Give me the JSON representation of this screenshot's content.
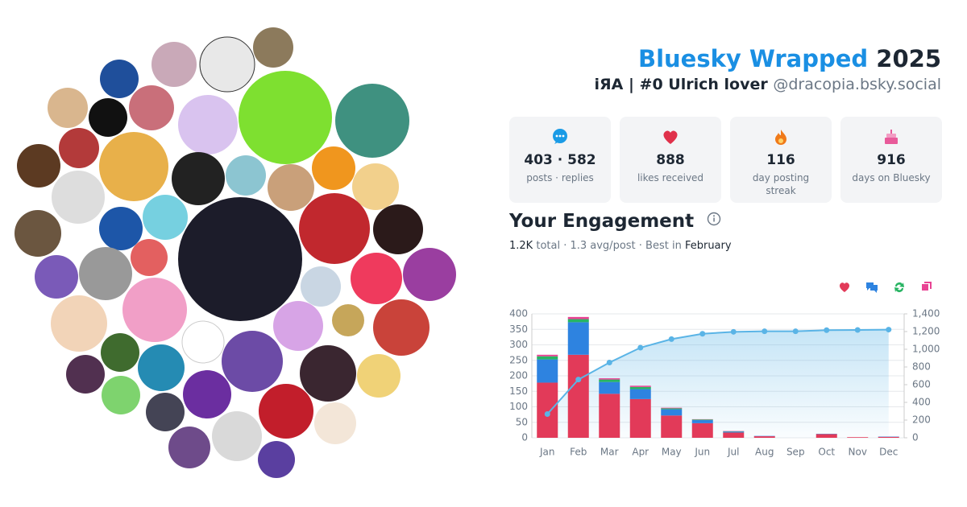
{
  "header": {
    "title": "Bluesky Wrapped",
    "year": "2025",
    "name": "iЯA | #0 Ulrich lover",
    "handle": "@dracopia.bsky.social"
  },
  "stats": [
    {
      "value": "403 · 582",
      "label": "posts · replies"
    },
    {
      "value": "888",
      "label": "likes received"
    },
    {
      "value": "116",
      "label": "day posting streak"
    },
    {
      "value": "916",
      "label": "days on Bluesky"
    }
  ],
  "engagement": {
    "title": "Your Engagement",
    "total": "1.2K",
    "summary": "total · 1.3 avg/post · Best in",
    "best": "February"
  },
  "chart_data": {
    "type": "bar",
    "stacked": true,
    "categories": [
      "Jan",
      "Feb",
      "Mar",
      "Apr",
      "May",
      "Jun",
      "Jul",
      "Aug",
      "Sep",
      "Oct",
      "Nov",
      "Dec"
    ],
    "series": [
      {
        "color": "#e23a59",
        "values": [
          178,
          268,
          142,
          125,
          72,
          47,
          17,
          5,
          0,
          12,
          2,
          3
        ]
      },
      {
        "color": "#2e83e0",
        "values": [
          75,
          105,
          38,
          32,
          20,
          10,
          3,
          1,
          0,
          1,
          0,
          1
        ]
      },
      {
        "color": "#28b463",
        "values": [
          10,
          10,
          8,
          7,
          3,
          2,
          1,
          0,
          0,
          0,
          0,
          0
        ]
      },
      {
        "color": "#e84393",
        "values": [
          5,
          7,
          4,
          4,
          2,
          1,
          1,
          0,
          0,
          0,
          0,
          0
        ]
      },
      {
        "type": "line",
        "axis": "y2",
        "color": "#5ab4e6",
        "values": [
          268,
          658,
          850,
          1018,
          1115,
          1175,
          1197,
          1203,
          1203,
          1216,
          1218,
          1222
        ]
      }
    ],
    "ylim": [
      0,
      400
    ],
    "yticks": [
      0,
      50,
      100,
      150,
      200,
      250,
      300,
      350,
      400
    ],
    "y2lim": [
      0,
      1400
    ],
    "y2ticks": [
      0,
      200,
      400,
      600,
      800,
      {
        "value": 1000,
        "label": "1,000"
      },
      {
        "value": 1200,
        "label": "1,200"
      },
      {
        "value": 1400,
        "label": "1,400"
      }
    ],
    "grid": true
  }
}
